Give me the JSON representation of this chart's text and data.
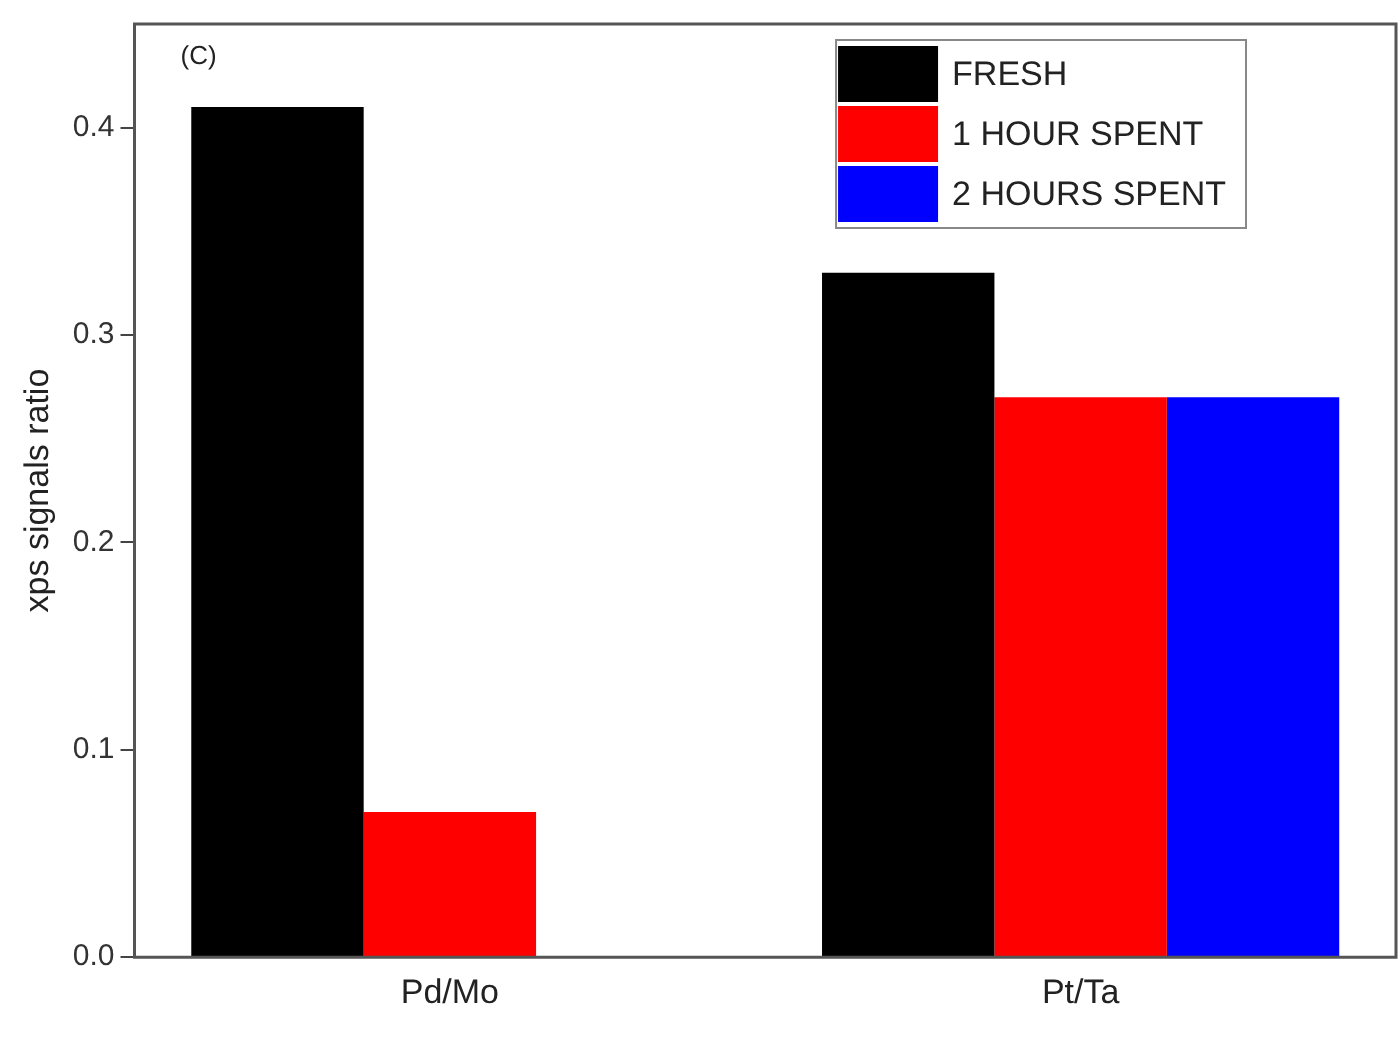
{
  "chart_data": {
    "type": "bar",
    "categories": [
      "Pd/Mo",
      "Pt/Ta"
    ],
    "series": [
      {
        "name": "FRESH",
        "color": "#000000",
        "values": [
          0.41,
          0.33
        ]
      },
      {
        "name": "1 HOUR SPENT",
        "color": "#ff0000",
        "values": [
          0.07,
          0.27
        ]
      },
      {
        "name": "2 HOURS SPENT",
        "color": "#0000ff",
        "values": [
          null,
          0.27
        ]
      }
    ],
    "ylabel": "xps signals ratio",
    "ylim": [
      0,
      0.45
    ],
    "yticks": [
      {
        "value": 0,
        "label": "0.0"
      },
      0.1,
      0.2,
      0.3,
      0.4
    ],
    "annotations": [
      "(C)"
    ],
    "grid": false,
    "legend": "top right"
  }
}
